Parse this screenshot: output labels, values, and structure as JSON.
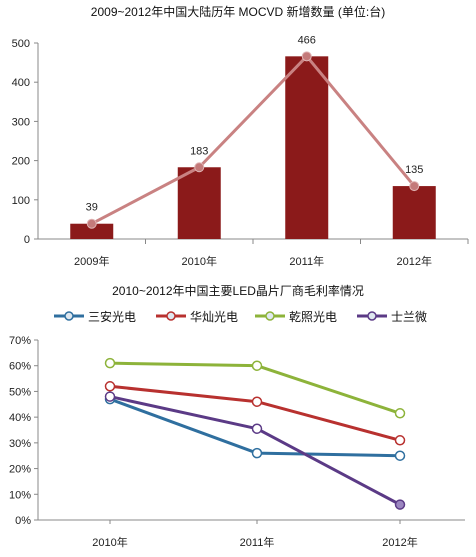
{
  "chart_data": [
    {
      "type": "bar",
      "title": "2009~2012年中国大陆历年 MOCVD 新增数量 (单位:台)",
      "categories": [
        "2009年",
        "2010年",
        "2011年",
        "2012年"
      ],
      "values": [
        39,
        183,
        466,
        135
      ],
      "data_labels": [
        "39",
        "183",
        "466",
        "135"
      ],
      "overlay_line": true,
      "ylim": [
        0,
        500
      ],
      "yticks": [
        "0",
        "100",
        "200",
        "300",
        "400",
        "500"
      ],
      "grid": false,
      "colors": {
        "bar": "#8b1a1a",
        "line": "#c98282",
        "marker": "#c47a7a"
      }
    },
    {
      "type": "line",
      "title": "2010~2012年中国主要LED晶片厂商毛利率情况",
      "categories": [
        "2010年",
        "2011年",
        "2012年"
      ],
      "series": [
        {
          "name": "三安光电",
          "values": [
            0.47,
            0.26,
            0.25
          ],
          "color": "#2f6f9f",
          "marker_fill": "#ffffff"
        },
        {
          "name": "华灿光电",
          "values": [
            0.52,
            0.46,
            0.31
          ],
          "color": "#b8312f",
          "marker_fill": "#ffffff"
        },
        {
          "name": "乾照光电",
          "values": [
            0.61,
            0.6,
            0.415
          ],
          "color": "#8db33a",
          "marker_fill": "#ffffff"
        },
        {
          "name": "士兰微",
          "values": [
            0.48,
            0.355,
            0.06
          ],
          "color": "#5b3a86",
          "marker_fill_last": "#9b86c0"
        }
      ],
      "ylim": [
        0,
        0.7
      ],
      "yticks": [
        "0%",
        "10%",
        "20%",
        "30%",
        "40%",
        "50%",
        "60%",
        "70%"
      ],
      "legend_position": "top",
      "grid": false
    }
  ]
}
